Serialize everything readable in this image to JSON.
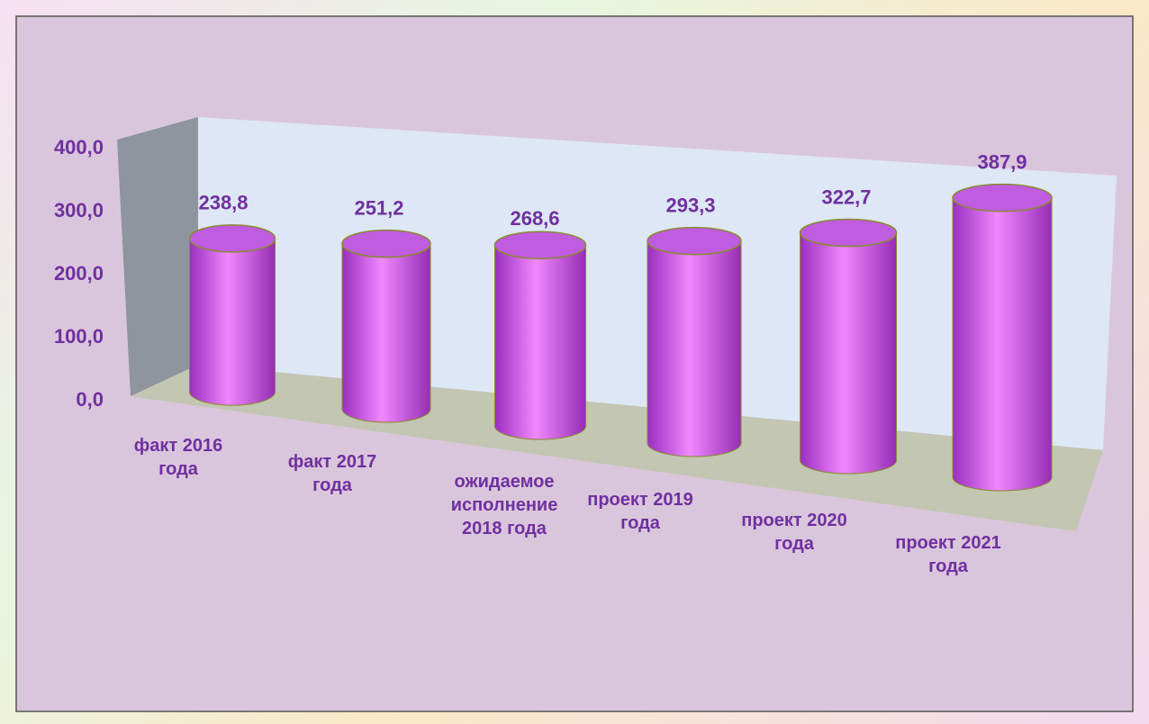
{
  "chart_data": {
    "type": "bar",
    "categories": [
      "факт 2016 года",
      "факт 2017 года",
      "ожидаемое исполнение 2018 года",
      "проект 2019 года",
      "проект 2020 года",
      "проект 2021 года"
    ],
    "values": [
      238.8,
      251.2,
      268.6,
      293.3,
      322.7,
      387.9
    ],
    "value_labels": [
      "238,8",
      "251,2",
      "268,6",
      "293,3",
      "322,7",
      "387,9"
    ],
    "color": "#e070f5",
    "ylim": [
      0,
      400
    ],
    "yticks": [
      {
        "value": 0,
        "label": "0,0"
      },
      {
        "value": 100,
        "label": "100,0"
      },
      {
        "value": 200,
        "label": "200,0"
      },
      {
        "value": 300,
        "label": "300,0"
      },
      {
        "value": 400,
        "label": "400,0"
      }
    ]
  }
}
